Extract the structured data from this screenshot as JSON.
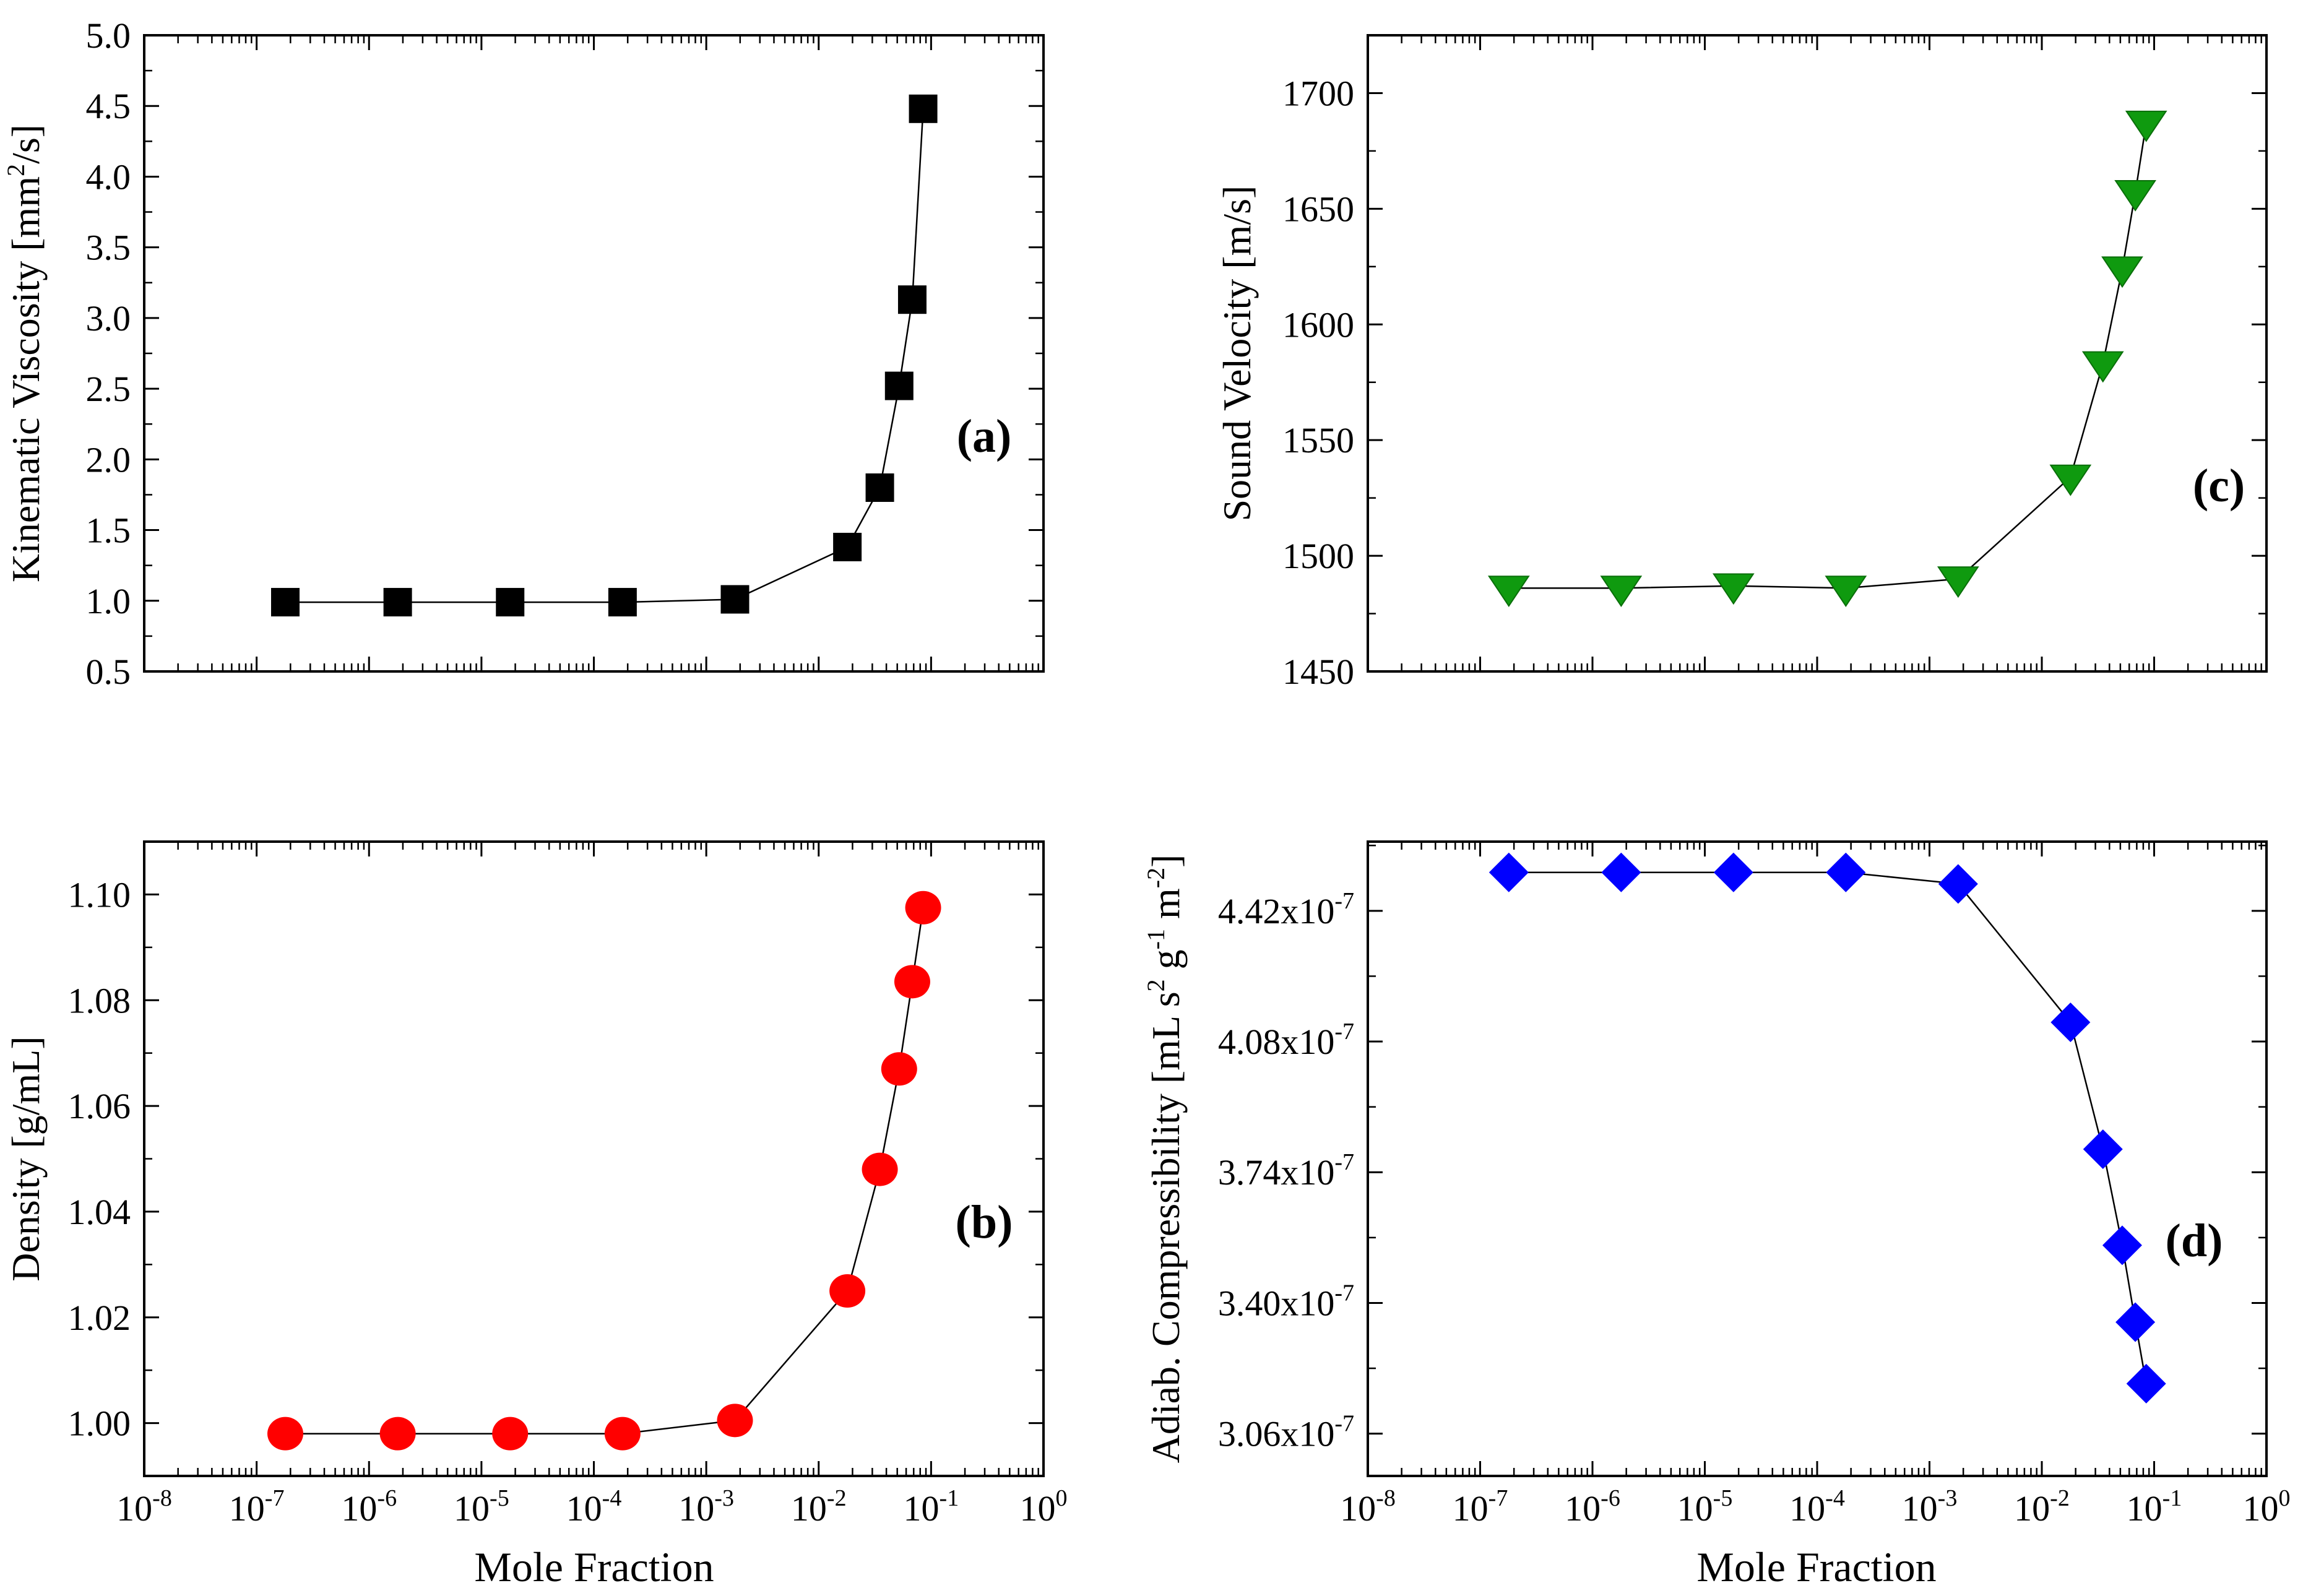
{
  "x_axis_label": "Mole Fraction",
  "colors": {
    "a": "#000000",
    "b": "#ff0000",
    "c": "#0f9a0f",
    "d": "#0000ff",
    "line": "#000000"
  },
  "chart_data": [
    {
      "id": "a",
      "type": "scatter",
      "panel_label": "(a)",
      "ylabel_parts": [
        {
          "t": "Kinematic Viscosity [mm"
        },
        {
          "t": "2",
          "sup": true
        },
        {
          "t": "/s]"
        }
      ],
      "xscale": "log",
      "xlim": [
        1e-08,
        1
      ],
      "ylim": [
        0.5,
        5.0
      ],
      "y_ticks": [
        0.5,
        1.0,
        1.5,
        2.0,
        2.5,
        3.0,
        3.5,
        4.0,
        4.5,
        5.0
      ],
      "y_tick_labels": [
        "0.5",
        "1.0",
        "1.5",
        "2.0",
        "2.5",
        "3.0",
        "3.5",
        "4.0",
        "4.5",
        "5.0"
      ],
      "x_tick_labels": [],
      "marker": "square",
      "series": [
        {
          "name": "Kinematic Viscosity",
          "x": [
            1.8e-07,
            1.8e-06,
            1.8e-05,
            0.00018,
            0.0018,
            0.018,
            0.035,
            0.052,
            0.068,
            0.085
          ],
          "y": [
            0.99,
            0.99,
            0.99,
            0.99,
            1.01,
            1.38,
            1.8,
            2.52,
            3.13,
            4.48
          ]
        }
      ]
    },
    {
      "id": "c",
      "type": "scatter",
      "panel_label": "(c)",
      "ylabel_parts": [
        {
          "t": "Sound Velocity [m/s]"
        }
      ],
      "xscale": "log",
      "xlim": [
        1e-08,
        1
      ],
      "ylim": [
        1450,
        1725
      ],
      "y_ticks": [
        1450,
        1500,
        1550,
        1600,
        1650,
        1700
      ],
      "y_tick_labels": [
        "1450",
        "1500",
        "1550",
        "1600",
        "1650",
        "1700"
      ],
      "x_tick_labels": [],
      "marker": "triangle-down",
      "series": [
        {
          "name": "Sound Velocity",
          "x": [
            1.8e-07,
            1.8e-06,
            1.8e-05,
            0.00018,
            0.0018,
            0.018,
            0.035,
            0.052,
            0.068,
            0.085
          ],
          "y": [
            1486,
            1486,
            1487,
            1486,
            1490,
            1534,
            1583,
            1624,
            1657,
            1687
          ]
        }
      ]
    },
    {
      "id": "b",
      "type": "scatter",
      "panel_label": "(b)",
      "ylabel_parts": [
        {
          "t": "Density [g/mL]"
        }
      ],
      "xscale": "log",
      "xlim": [
        1e-08,
        1
      ],
      "ylim": [
        0.99,
        1.11
      ],
      "y_ticks": [
        1.0,
        1.02,
        1.04,
        1.06,
        1.08,
        1.1
      ],
      "y_tick_labels": [
        "1.00",
        "1.02",
        "1.04",
        "1.06",
        "1.08",
        "1.10"
      ],
      "x_tick_labels": [
        "10",
        "10",
        "10",
        "10",
        "10",
        "10",
        "10",
        "10",
        "10"
      ],
      "x_tick_exponents": [
        "-8",
        "-7",
        "-6",
        "-5",
        "-4",
        "-3",
        "-2",
        "-1",
        "0"
      ],
      "marker": "circle",
      "series": [
        {
          "name": "Density",
          "x": [
            1.8e-07,
            1.8e-06,
            1.8e-05,
            0.00018,
            0.0018,
            0.018,
            0.035,
            0.052,
            0.068,
            0.085
          ],
          "y": [
            0.998,
            0.998,
            0.998,
            0.998,
            1.0005,
            1.025,
            1.048,
            1.067,
            1.0835,
            1.0975
          ]
        }
      ]
    },
    {
      "id": "d",
      "type": "scatter",
      "panel_label": "(d)",
      "ylabel_parts": [
        {
          "t": "Adiab. Compressibility [mL s"
        },
        {
          "t": "2",
          "sup": true
        },
        {
          "t": " g"
        },
        {
          "t": "-1",
          "sup": true
        },
        {
          "t": " m"
        },
        {
          "t": "-2",
          "sup": true
        },
        {
          "t": "]"
        }
      ],
      "xscale": "log",
      "xlim": [
        1e-08,
        1
      ],
      "ylim": [
        2.95e-07,
        4.6e-07
      ],
      "y_ticks": [
        3.06e-07,
        3.4e-07,
        3.74e-07,
        4.08e-07,
        4.42e-07
      ],
      "y_tick_labels": [
        "3.06x10",
        "3.40x10",
        "3.74x10",
        "4.08x10",
        "4.42x10"
      ],
      "y_tick_exponents": [
        "-7",
        "-7",
        "-7",
        "-7",
        "-7"
      ],
      "x_tick_labels": [
        "10",
        "10",
        "10",
        "10",
        "10",
        "10",
        "10",
        "10",
        "10"
      ],
      "x_tick_exponents": [
        "-8",
        "-7",
        "-6",
        "-5",
        "-4",
        "-3",
        "-2",
        "-1",
        "0"
      ],
      "marker": "diamond",
      "series": [
        {
          "name": "Adiab. Compressibility",
          "x": [
            1.8e-07,
            1.8e-06,
            1.8e-05,
            0.00018,
            0.0018,
            0.018,
            0.035,
            0.052,
            0.068,
            0.085
          ],
          "y": [
            4.52e-07,
            4.52e-07,
            4.52e-07,
            4.52e-07,
            4.49e-07,
            4.13e-07,
            3.8e-07,
            3.55e-07,
            3.35e-07,
            3.19e-07
          ]
        }
      ]
    }
  ]
}
